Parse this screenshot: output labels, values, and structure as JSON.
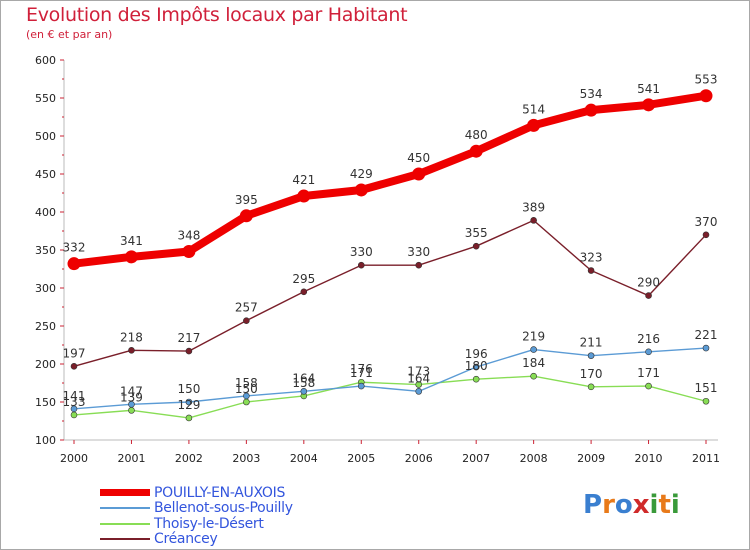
{
  "chart_data": {
    "type": "line",
    "title": "Evolution des Impôts locaux par Habitant",
    "subtitle": "(en € et par an)",
    "xlabel": "",
    "ylabel": "",
    "ylim": [
      100,
      600
    ],
    "yticks": [
      "100",
      "150",
      "200",
      "250",
      "300",
      "350",
      "400",
      "450",
      "500",
      "550",
      "600"
    ],
    "categories": [
      "2000",
      "2001",
      "2002",
      "2003",
      "2004",
      "2005",
      "2006",
      "2007",
      "2008",
      "2009",
      "2010",
      "2011"
    ],
    "series": [
      {
        "name": "POUILLY-EN-AUXOIS",
        "color": "#ee0000",
        "values": [
          332,
          341,
          348,
          395,
          421,
          429,
          450,
          480,
          514,
          534,
          541,
          553
        ],
        "labels": [
          "332",
          "341",
          "348",
          "395",
          "421",
          "429",
          "450",
          "480",
          "514",
          "534",
          "541",
          "553"
        ]
      },
      {
        "name": "Bellenot-sous-Pouilly",
        "color": "#5b9bd5",
        "values": [
          141,
          147,
          150,
          158,
          164,
          171,
          164,
          196,
          219,
          211,
          216,
          221
        ],
        "labels": [
          "141",
          "147",
          "150",
          "158",
          "164",
          "171",
          "164",
          "196",
          "219",
          "211",
          "216",
          "221"
        ]
      },
      {
        "name": "Thoisy-le-Désert",
        "color": "#88dd55",
        "values": [
          133,
          139,
          129,
          150,
          158,
          176,
          173,
          180,
          184,
          170,
          171,
          151
        ],
        "labels": [
          "133",
          "139",
          "129",
          "150",
          "158",
          "176",
          "173",
          "180",
          "184",
          "170",
          "171",
          "151"
        ]
      },
      {
        "name": "Créancey",
        "color": "#7a1f2a",
        "values": [
          197,
          218,
          217,
          257,
          295,
          330,
          330,
          355,
          389,
          323,
          290,
          370
        ],
        "labels": [
          "197",
          "218",
          "217",
          "257",
          "295",
          "330",
          "330",
          "355",
          "389",
          "323",
          "290",
          "370"
        ]
      }
    ],
    "legend_position": "bottom-left",
    "grid": false
  },
  "logo": {
    "text": "Proxiti",
    "letters": [
      "P",
      "r",
      "o",
      "x",
      "i",
      "t",
      "i"
    ],
    "colors": [
      "#3a7fd0",
      "#e87a1a",
      "#3a7fd0",
      "#d02a2a",
      "#3a9a3a",
      "#e87a1a",
      "#3a9a3a"
    ]
  }
}
